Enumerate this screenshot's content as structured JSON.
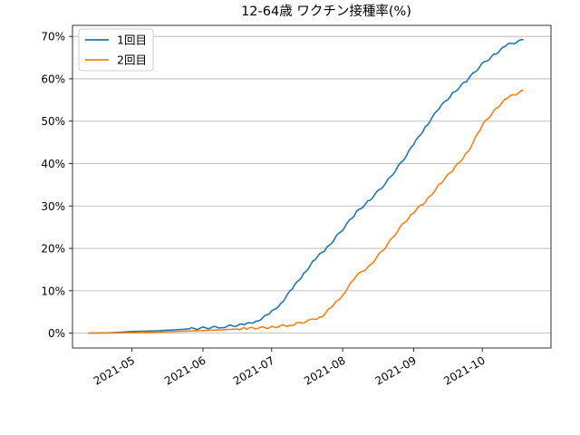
{
  "chart_data": {
    "type": "line",
    "title": "12-64歳 ワクチン接種率(%)",
    "xlabel": "",
    "ylabel": "",
    "x_type": "date",
    "xlim": [
      "2021-04-05",
      "2021-10-31"
    ],
    "ylim": [
      -3.5,
      72.6
    ],
    "y_ticks": [
      0,
      10,
      20,
      30,
      40,
      50,
      60,
      70
    ],
    "y_tick_labels": [
      "0%",
      "10%",
      "20%",
      "30%",
      "40%",
      "50%",
      "60%",
      "70%"
    ],
    "x_ticks": [
      "2021-05-01",
      "2021-06-01",
      "2021-07-01",
      "2021-08-01",
      "2021-09-01",
      "2021-10-01"
    ],
    "x_tick_labels": [
      "2021-05",
      "2021-06",
      "2021-07",
      "2021-08",
      "2021-09",
      "2021-10"
    ],
    "grid": "horizontal",
    "legend_position": "top-left",
    "series": [
      {
        "name": "1回目",
        "color": "#1f77b4",
        "points": [
          [
            "2021-04-12",
            0.0
          ],
          [
            "2021-04-22",
            0.1
          ],
          [
            "2021-05-01",
            0.4
          ],
          [
            "2021-05-10",
            0.5
          ],
          [
            "2021-05-20",
            0.8
          ],
          [
            "2021-06-01",
            1.2
          ],
          [
            "2021-06-10",
            1.5
          ],
          [
            "2021-06-20",
            2.1
          ],
          [
            "2021-06-25",
            3.0
          ],
          [
            "2021-06-30",
            4.5
          ],
          [
            "2021-07-05",
            7.0
          ],
          [
            "2021-07-10",
            10.5
          ],
          [
            "2021-07-15",
            14.0
          ],
          [
            "2021-07-20",
            17.5
          ],
          [
            "2021-07-25",
            20.0
          ],
          [
            "2021-08-01",
            24.5
          ],
          [
            "2021-08-07",
            28.5
          ],
          [
            "2021-08-13",
            31.5
          ],
          [
            "2021-08-20",
            35.5
          ],
          [
            "2021-08-27",
            40.5
          ],
          [
            "2021-09-01",
            44.5
          ],
          [
            "2021-09-06",
            48.5
          ],
          [
            "2021-09-12",
            53.0
          ],
          [
            "2021-09-18",
            56.5
          ],
          [
            "2021-09-24",
            59.5
          ],
          [
            "2021-10-01",
            63.5
          ],
          [
            "2021-10-07",
            66.0
          ],
          [
            "2021-10-12",
            68.0
          ],
          [
            "2021-10-19",
            69.2
          ]
        ]
      },
      {
        "name": "2回目",
        "color": "#ff7f0e",
        "points": [
          [
            "2021-04-12",
            0.0
          ],
          [
            "2021-05-01",
            0.1
          ],
          [
            "2021-05-10",
            0.2
          ],
          [
            "2021-05-20",
            0.4
          ],
          [
            "2021-06-01",
            0.6
          ],
          [
            "2021-06-10",
            0.8
          ],
          [
            "2021-06-20",
            1.1
          ],
          [
            "2021-07-01",
            1.4
          ],
          [
            "2021-07-10",
            2.0
          ],
          [
            "2021-07-18",
            3.0
          ],
          [
            "2021-07-23",
            4.0
          ],
          [
            "2021-07-28",
            6.5
          ],
          [
            "2021-08-01",
            9.0
          ],
          [
            "2021-08-07",
            13.5
          ],
          [
            "2021-08-13",
            16.0
          ],
          [
            "2021-08-20",
            20.5
          ],
          [
            "2021-08-27",
            25.5
          ],
          [
            "2021-09-01",
            28.5
          ],
          [
            "2021-09-07",
            31.5
          ],
          [
            "2021-09-13",
            35.5
          ],
          [
            "2021-09-19",
            39.0
          ],
          [
            "2021-09-25",
            43.0
          ],
          [
            "2021-10-01",
            49.0
          ],
          [
            "2021-10-07",
            53.0
          ],
          [
            "2021-10-12",
            55.5
          ],
          [
            "2021-10-19",
            57.3
          ]
        ]
      }
    ]
  }
}
